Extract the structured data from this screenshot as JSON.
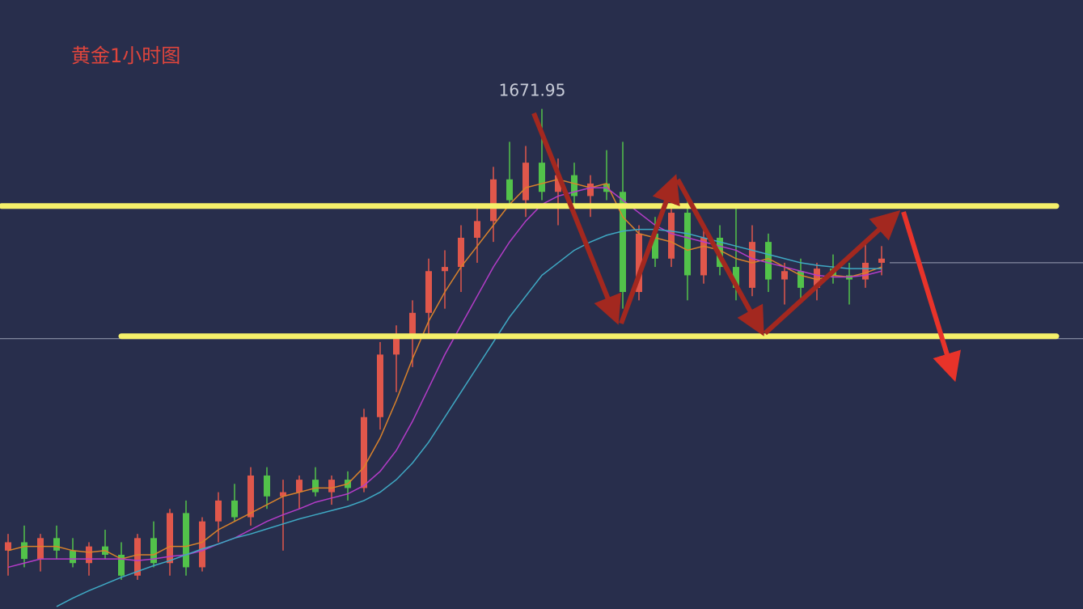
{
  "chart_data": {
    "type": "candlestick",
    "title": "黄金1小时图",
    "annotation": {
      "text": "1671.95",
      "value": 1671.95,
      "index": 33
    },
    "ylim": [
      1612,
      1685
    ],
    "up_color": "#e0574b",
    "down_color": "#52c24a",
    "open": [
      1619,
      1620,
      1618,
      1620.5,
      1619,
      1617.5,
      1619.5,
      1618.5,
      1616,
      1620.5,
      1617.5,
      1623.5,
      1617,
      1622.5,
      1625,
      1623,
      1628,
      1625.5,
      1626,
      1627.5,
      1626,
      1627.5,
      1626.5,
      1635,
      1642.5,
      1645,
      1647.5,
      1652.5,
      1653,
      1656.5,
      1658.5,
      1663.5,
      1661,
      1665.5,
      1662,
      1664,
      1661.5,
      1663,
      1662,
      1650,
      1657,
      1654,
      1659.5,
      1652,
      1656.5,
      1653,
      1650.5,
      1656,
      1651.5,
      1652.5,
      1650.5,
      1652.8,
      1652,
      1651.5,
      1653.5
    ],
    "high": [
      1621,
      1622,
      1621,
      1622,
      1620.5,
      1620,
      1621.5,
      1620,
      1621,
      1622.5,
      1624,
      1625,
      1623,
      1626,
      1627,
      1629,
      1629,
      1627.5,
      1628,
      1629,
      1628,
      1628.5,
      1636,
      1644,
      1646,
      1649,
      1654,
      1655,
      1658,
      1660,
      1665,
      1668,
      1667.5,
      1671.95,
      1666,
      1665.5,
      1664,
      1667,
      1668,
      1658,
      1659,
      1660.5,
      1661,
      1658,
      1658,
      1660,
      1658,
      1657,
      1653.5,
      1654,
      1653.5,
      1654.5,
      1653.5,
      1656,
      1655.5
    ],
    "low": [
      1616,
      1617,
      1616.5,
      1618,
      1617,
      1616,
      1618,
      1615.5,
      1615.5,
      1617,
      1616,
      1616,
      1616.5,
      1620,
      1622.5,
      1622,
      1624,
      1619,
      1624,
      1625.5,
      1624.5,
      1625,
      1626,
      1633.5,
      1638,
      1641,
      1645,
      1648,
      1650,
      1653.5,
      1656,
      1660,
      1659,
      1661,
      1658,
      1660.5,
      1659,
      1661,
      1648,
      1649,
      1653,
      1653,
      1649,
      1651,
      1652,
      1649,
      1649.5,
      1650,
      1648.5,
      1649,
      1649,
      1651,
      1648.5,
      1650.5,
      1652
    ],
    "close": [
      1620,
      1618,
      1620.5,
      1619,
      1617.5,
      1619.5,
      1618.5,
      1616,
      1620.5,
      1617.5,
      1623.5,
      1617,
      1622.5,
      1625,
      1623,
      1628,
      1625.5,
      1626,
      1627.5,
      1626,
      1627.5,
      1626.5,
      1635,
      1642.5,
      1645,
      1647.5,
      1652.5,
      1653,
      1656.5,
      1658.5,
      1663.5,
      1661,
      1665.5,
      1662,
      1664,
      1661.5,
      1663,
      1662,
      1650,
      1657,
      1654,
      1659.5,
      1652,
      1656.5,
      1653,
      1650.5,
      1656,
      1651.5,
      1652.5,
      1650.5,
      1652.8,
      1652,
      1651.5,
      1653.5,
      1654
    ],
    "series": [
      {
        "color": "#d9822b",
        "values": [
          1619,
          1619.5,
          1619.5,
          1619.5,
          1619,
          1618.8,
          1619,
          1618,
          1618.5,
          1618.5,
          1619.5,
          1619.5,
          1620,
          1621.5,
          1622.5,
          1623.5,
          1624.5,
          1625.5,
          1626,
          1626.5,
          1626.5,
          1627,
          1629,
          1632.5,
          1637,
          1642,
          1646.5,
          1650,
          1653,
          1655.5,
          1658,
          1660.5,
          1662.5,
          1663,
          1663.5,
          1663,
          1662.5,
          1663,
          1659,
          1657,
          1656.5,
          1656,
          1655,
          1655.5,
          1655,
          1654,
          1653.5,
          1654,
          1653,
          1652,
          1651.5,
          1652,
          1651.8,
          1652.3,
          1653
        ]
      },
      {
        "color": "#b43cc8",
        "values": [
          1617,
          1617.5,
          1618,
          1618,
          1618,
          1618,
          1618,
          1618,
          1617.8,
          1618,
          1618.3,
          1618.5,
          1619,
          1619.8,
          1620.5,
          1621.5,
          1622.5,
          1623.3,
          1624,
          1624.8,
          1625.3,
          1625.8,
          1626.8,
          1628.5,
          1631,
          1634.5,
          1638.5,
          1642.5,
          1646,
          1649.5,
          1653,
          1656,
          1658.5,
          1660.5,
          1661.5,
          1662,
          1662.5,
          1662.5,
          1661,
          1659.5,
          1658,
          1657,
          1656.5,
          1656,
          1655.5,
          1655,
          1654,
          1653.5,
          1653,
          1652.5,
          1652,
          1651.8,
          1651.8,
          1652,
          1652.5
        ]
      },
      {
        "color": "#3fa9c4",
        "values": [
          null,
          null,
          null,
          1612.3,
          1613.3,
          1614.2,
          1615,
          1615.8,
          1616.5,
          1617.2,
          1617.8,
          1618.5,
          1619.2,
          1619.8,
          1620.5,
          1621,
          1621.6,
          1622.2,
          1622.8,
          1623.3,
          1623.8,
          1624.3,
          1625,
          1626,
          1627.5,
          1629.5,
          1632,
          1635,
          1638,
          1641,
          1644,
          1647,
          1649.5,
          1652,
          1653.5,
          1655,
          1656,
          1656.8,
          1657.3,
          1657.5,
          1657.5,
          1657.3,
          1657,
          1656.5,
          1656,
          1655.5,
          1655,
          1654.5,
          1654,
          1653.5,
          1653.2,
          1653,
          1652.8,
          1652.8,
          1652.8
        ]
      }
    ],
    "levels": [
      1660.3,
      1644.7
    ],
    "level_color": "#f5f06a",
    "guides": [
      1653.5,
      1644.4
    ],
    "guide_color": "#9aa0b4"
  }
}
